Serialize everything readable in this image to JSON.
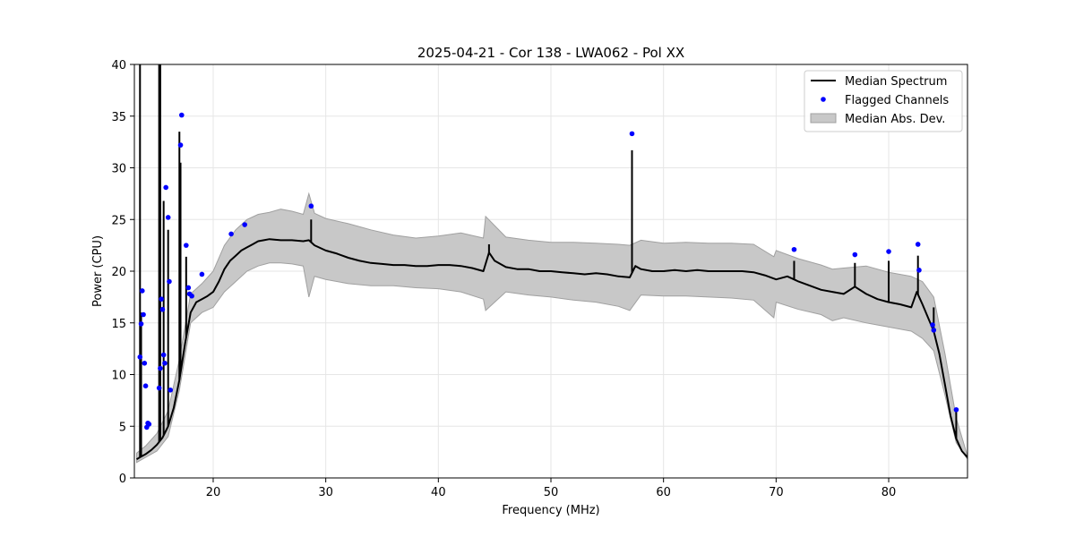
{
  "chart_data": {
    "type": "line",
    "title": "2025-04-21 - Cor 138 - LWA062 - Pol XX",
    "xlabel": "Frequency (MHz)",
    "ylabel": "Power (CPU)",
    "xlim": [
      13.0,
      87.0
    ],
    "ylim": [
      0,
      40
    ],
    "xticks": [
      20,
      30,
      40,
      50,
      60,
      70,
      80
    ],
    "xtick_labels": [
      "20",
      "30",
      "40",
      "50",
      "60",
      "70",
      "80"
    ],
    "yticks": [
      0,
      5,
      10,
      15,
      20,
      25,
      30,
      35,
      40
    ],
    "ytick_labels": [
      "0",
      "5",
      "10",
      "15",
      "20",
      "25",
      "30",
      "35",
      "40"
    ],
    "grid": true,
    "legend_position": "top-right",
    "colors": {
      "median": "#000000",
      "flagged": "#0000ff",
      "mad_fill": "#c8c8c8",
      "mad_edge": "#a0a0a0"
    },
    "series": [
      {
        "name": "Median Spectrum",
        "kind": "line",
        "x": [
          13.2,
          13.5,
          14.0,
          14.5,
          15.0,
          15.5,
          16.0,
          16.5,
          17.0,
          17.5,
          18.0,
          18.5,
          19.0,
          19.5,
          20.0,
          20.5,
          21.0,
          21.5,
          22.0,
          22.5,
          23.0,
          23.5,
          24.0,
          24.5,
          25.0,
          26.0,
          27.0,
          28.0,
          28.5,
          29.0,
          30.0,
          31.0,
          32.0,
          33.0,
          34.0,
          35.0,
          36.0,
          37.0,
          38.0,
          39.0,
          40.0,
          41.0,
          42.0,
          43.0,
          44.0,
          44.5,
          45.0,
          46.0,
          47.0,
          48.0,
          49.0,
          50.0,
          51.0,
          52.0,
          53.0,
          54.0,
          55.0,
          56.0,
          57.0,
          57.5,
          58.0,
          59.0,
          60.0,
          61.0,
          62.0,
          63.0,
          64.0,
          65.0,
          66.0,
          67.0,
          68.0,
          69.0,
          70.0,
          71.0,
          72.0,
          73.0,
          74.0,
          75.0,
          76.0,
          77.0,
          78.0,
          79.0,
          80.0,
          81.0,
          82.0,
          82.5,
          83.0,
          83.5,
          84.0,
          84.5,
          85.0,
          85.5,
          86.0,
          86.5,
          87.0
        ],
        "y": [
          1.8,
          2.0,
          2.3,
          2.7,
          3.2,
          3.9,
          5.0,
          6.8,
          9.5,
          13.0,
          16.0,
          17.0,
          17.3,
          17.6,
          18.0,
          19.0,
          20.2,
          21.0,
          21.5,
          22.0,
          22.3,
          22.6,
          22.9,
          23.0,
          23.1,
          23.0,
          23.0,
          22.9,
          23.0,
          22.5,
          22.0,
          21.7,
          21.3,
          21.0,
          20.8,
          20.7,
          20.6,
          20.6,
          20.5,
          20.5,
          20.6,
          20.6,
          20.5,
          20.3,
          20.0,
          21.8,
          21.0,
          20.4,
          20.2,
          20.2,
          20.0,
          20.0,
          19.9,
          19.8,
          19.7,
          19.8,
          19.7,
          19.5,
          19.4,
          20.5,
          20.2,
          20.0,
          20.0,
          20.1,
          20.0,
          20.1,
          20.0,
          20.0,
          20.0,
          20.0,
          19.9,
          19.6,
          19.2,
          19.5,
          19.0,
          18.6,
          18.2,
          18.0,
          17.8,
          18.5,
          17.8,
          17.3,
          17.0,
          16.8,
          16.5,
          18.0,
          16.8,
          15.5,
          14.2,
          12.0,
          9.0,
          6.0,
          3.8,
          2.6,
          2.0
        ]
      },
      {
        "name": "Flagged Channels",
        "kind": "scatter",
        "x": [
          13.5,
          13.6,
          13.7,
          13.8,
          13.9,
          14.0,
          14.1,
          14.2,
          14.3,
          15.2,
          15.3,
          15.4,
          15.5,
          15.6,
          15.7,
          15.8,
          16.0,
          16.1,
          16.2,
          17.1,
          17.2,
          17.6,
          17.8,
          17.9,
          18.1,
          19.0,
          21.6,
          22.8,
          28.7,
          57.2,
          71.6,
          77.0,
          80.0,
          82.6,
          82.7,
          83.9,
          84.0,
          86.0
        ],
        "y": [
          11.7,
          14.9,
          18.1,
          15.8,
          11.1,
          8.9,
          4.9,
          5.3,
          5.2,
          8.7,
          10.6,
          17.3,
          16.3,
          11.9,
          11.1,
          28.1,
          25.2,
          19.0,
          8.5,
          32.2,
          35.1,
          22.5,
          18.4,
          17.8,
          17.6,
          19.7,
          23.6,
          24.5,
          26.3,
          33.3,
          22.1,
          21.6,
          21.9,
          22.6,
          20.1,
          14.8,
          14.3,
          6.6
        ]
      },
      {
        "name": "Median Abs. Dev.",
        "kind": "band",
        "x": [
          13.2,
          14.0,
          15.0,
          16.0,
          17.0,
          18.0,
          19.0,
          20.0,
          21.0,
          22.0,
          23.0,
          24.0,
          25.0,
          26.0,
          27.0,
          28.0,
          28.5,
          29.0,
          30.0,
          32.0,
          34.0,
          36.0,
          38.0,
          40.0,
          42.0,
          44.0,
          44.2,
          46.0,
          48.0,
          50.0,
          52.0,
          54.0,
          56.0,
          57.0,
          58.0,
          60.0,
          62.0,
          64.0,
          66.0,
          68.0,
          69.8,
          70.0,
          72.0,
          74.0,
          75.0,
          76.0,
          78.0,
          80.0,
          82.0,
          83.0,
          84.0,
          85.0,
          86.0,
          87.0
        ],
        "lower": [
          1.5,
          2.0,
          2.6,
          4.0,
          8.5,
          15.0,
          16.0,
          16.5,
          18.0,
          19.0,
          20.0,
          20.5,
          20.8,
          20.8,
          20.7,
          20.5,
          17.5,
          19.5,
          19.2,
          18.8,
          18.6,
          18.6,
          18.4,
          18.3,
          18.0,
          17.3,
          16.2,
          18.0,
          17.7,
          17.5,
          17.2,
          17.0,
          16.6,
          16.2,
          17.7,
          17.6,
          17.6,
          17.5,
          17.4,
          17.2,
          15.5,
          17.0,
          16.3,
          15.8,
          15.2,
          15.5,
          15.0,
          14.6,
          14.2,
          13.5,
          12.3,
          8.0,
          3.4,
          1.8
        ],
        "upper": [
          2.4,
          3.1,
          4.3,
          6.5,
          11.5,
          17.8,
          18.8,
          20.0,
          22.5,
          24.0,
          25.0,
          25.5,
          25.7,
          26.0,
          25.8,
          25.5,
          27.5,
          25.6,
          25.1,
          24.6,
          24.0,
          23.5,
          23.2,
          23.4,
          23.7,
          23.2,
          25.3,
          23.3,
          23.0,
          22.8,
          22.8,
          22.7,
          22.6,
          22.5,
          23.0,
          22.7,
          22.8,
          22.7,
          22.7,
          22.6,
          21.4,
          22.0,
          21.2,
          20.6,
          20.2,
          20.3,
          20.5,
          19.9,
          19.5,
          19.0,
          17.5,
          12.0,
          5.8,
          2.1
        ]
      }
    ],
    "spikes": {
      "x": [
        13.5,
        13.6,
        15.2,
        15.3,
        15.6,
        16.0,
        17.0,
        17.1,
        17.6,
        28.7,
        44.5,
        57.2,
        71.6,
        77.0,
        80.0,
        82.6,
        84.0,
        86.0
      ],
      "y": [
        40.0,
        16.0,
        40.0,
        40.0,
        26.8,
        24.0,
        33.5,
        30.5,
        21.4,
        25.0,
        22.6,
        31.7,
        21.0,
        20.8,
        21.0,
        21.5,
        16.5,
        6.4
      ]
    }
  }
}
